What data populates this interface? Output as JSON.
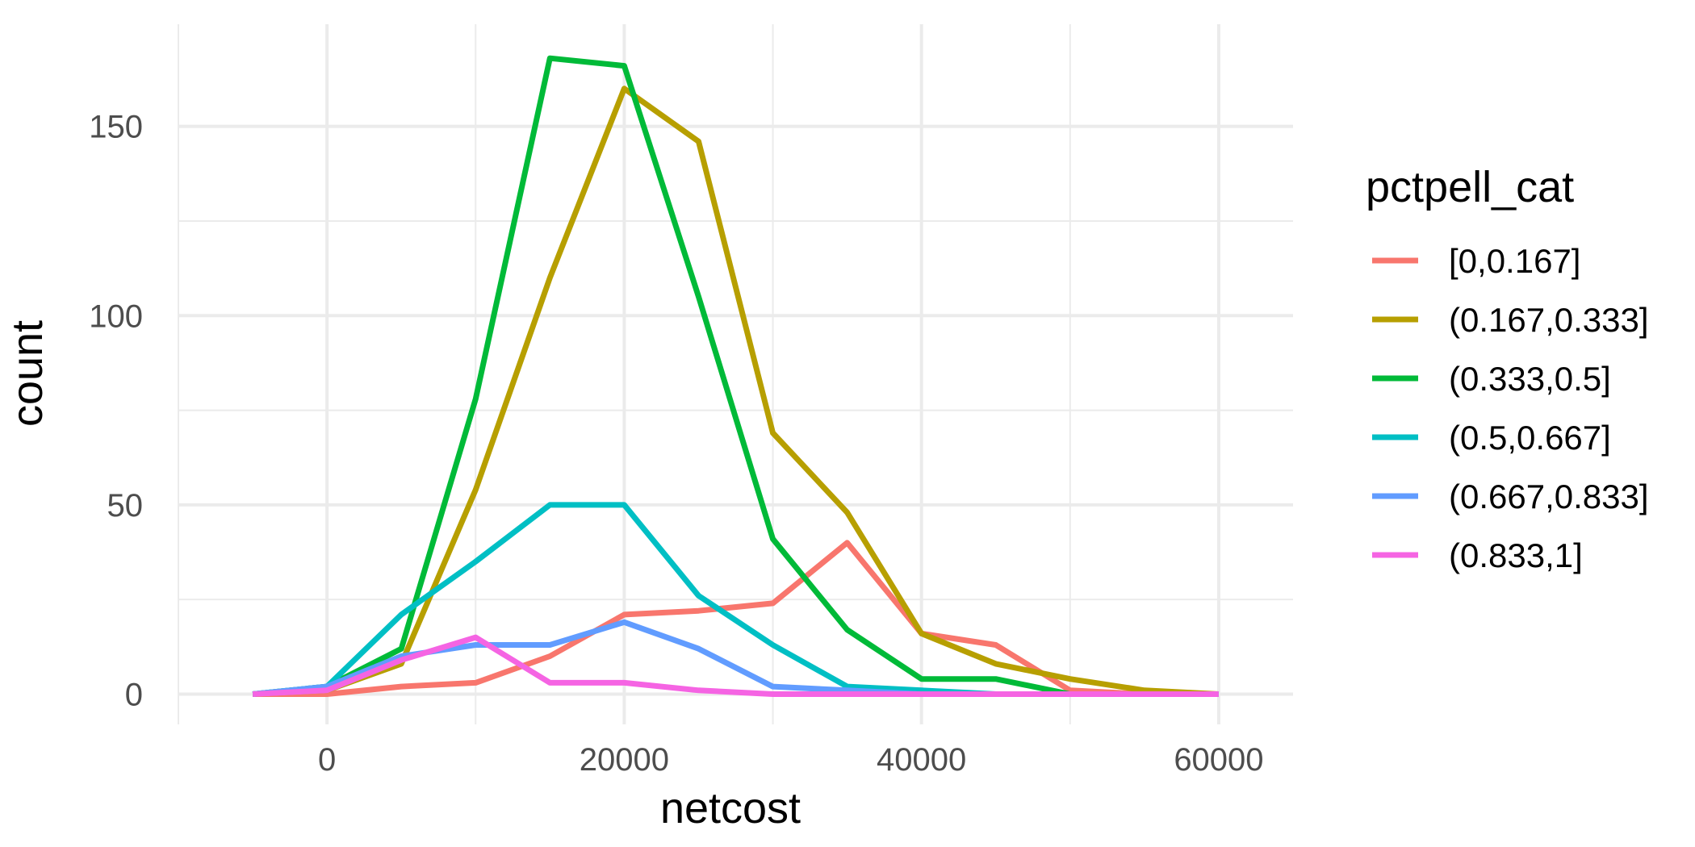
{
  "chart_data": {
    "type": "line",
    "title": "",
    "xlabel": "netcost",
    "ylabel": "count",
    "xlim": [
      -10000,
      65000
    ],
    "ylim": [
      -8,
      177
    ],
    "x_major_ticks": [
      0,
      20000,
      40000,
      60000
    ],
    "x_minor_ticks": [
      -10000,
      10000,
      30000,
      50000
    ],
    "y_major_ticks": [
      0,
      50,
      100,
      150
    ],
    "y_minor_ticks": [
      25,
      75,
      125
    ],
    "x_tick_labels": [
      "0",
      "20000",
      "40000",
      "60000"
    ],
    "y_tick_labels": [
      "0",
      "50",
      "100",
      "150"
    ],
    "grid": true,
    "legend": {
      "title": "pctpell_cat",
      "position": "right"
    },
    "x": [
      -5000,
      0,
      5000,
      10000,
      15000,
      20000,
      25000,
      30000,
      35000,
      40000,
      45000,
      50000,
      55000,
      60000
    ],
    "series": [
      {
        "name": "[0,0.167]",
        "color": "#F8766D",
        "values": [
          0,
          0,
          2,
          3,
          10,
          21,
          22,
          24,
          40,
          16,
          13,
          1,
          0,
          0
        ]
      },
      {
        "name": "(0.167,0.333]",
        "color": "#B79F00",
        "values": [
          0,
          1,
          8,
          54,
          110,
          160,
          146,
          69,
          48,
          16,
          8,
          4,
          1,
          0
        ]
      },
      {
        "name": "(0.333,0.5]",
        "color": "#00BA38",
        "values": [
          0,
          2,
          12,
          78,
          168,
          166,
          105,
          41,
          17,
          4,
          4,
          0,
          0,
          0
        ]
      },
      {
        "name": "(0.5,0.667]",
        "color": "#00BFC4",
        "values": [
          0,
          2,
          21,
          35,
          50,
          50,
          26,
          13,
          2,
          1,
          0,
          0,
          0,
          0
        ]
      },
      {
        "name": "(0.667,0.833]",
        "color": "#619CFF",
        "values": [
          0,
          2,
          10,
          13,
          13,
          19,
          12,
          2,
          1,
          0,
          0,
          0,
          0,
          0
        ]
      },
      {
        "name": "(0.833,1]",
        "color": "#F564E3",
        "values": [
          0,
          1,
          9,
          15,
          3,
          3,
          1,
          0,
          0,
          0,
          0,
          0,
          0,
          0
        ]
      }
    ]
  }
}
